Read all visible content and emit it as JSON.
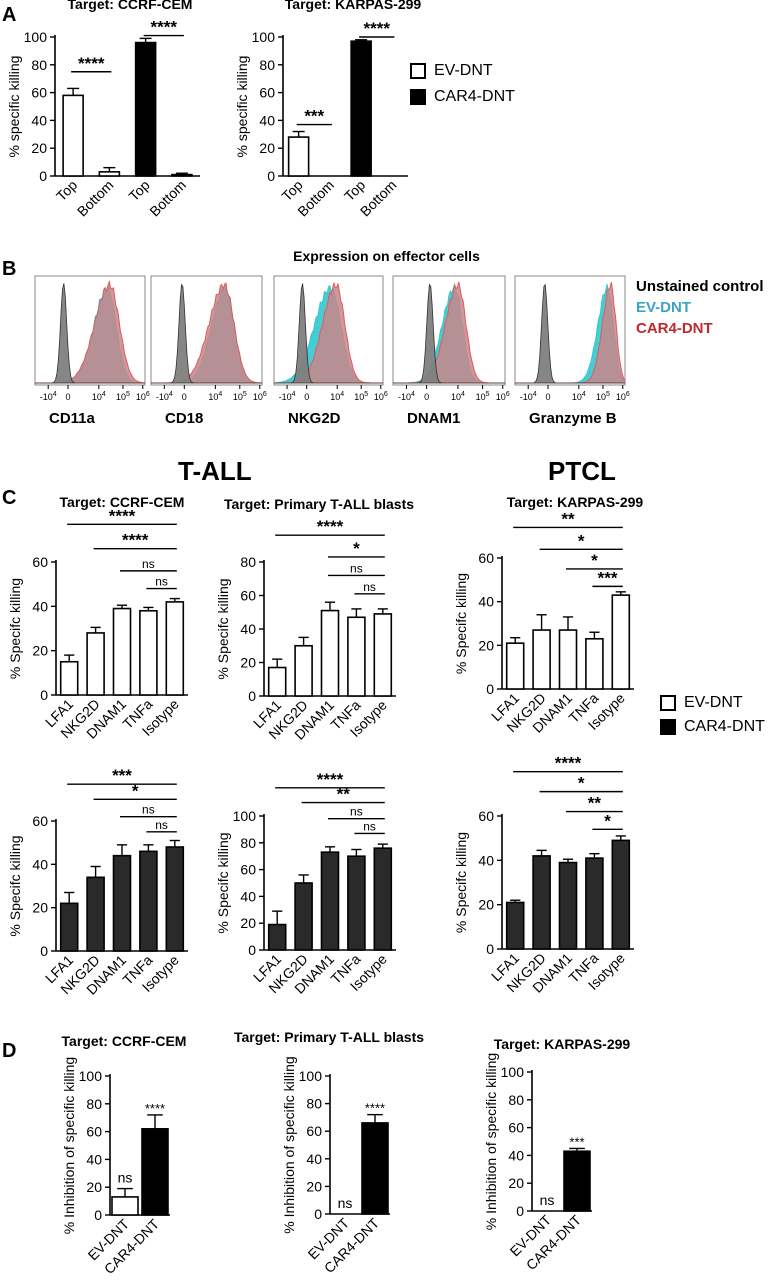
{
  "panel_labels": {
    "a": "A",
    "b": "B",
    "c": "C",
    "d": "D"
  },
  "colors": {
    "ev": "#ffffff",
    "car4": "#000000",
    "car4_dark": "#2a2a2a",
    "flow_unstained": "#7f7f7f",
    "flow_ev": "#32c8cf",
    "flow_car4": "#c9868a",
    "legend_ev_text": "#3aa3c8",
    "legend_car4_text": "#c0282d"
  },
  "legend": {
    "ev": "EV-DNT",
    "car4": "CAR4-DNT"
  },
  "group_titles": {
    "tall": "T-ALL",
    "ptcl": "PTCL"
  },
  "panel_b": {
    "title": "Expression on effector cells",
    "legend": [
      "Unstained control",
      "EV-DNT",
      "CAR4-DNT"
    ],
    "markers": [
      "CD11a",
      "CD18",
      "NKG2D",
      "DNAM1",
      "Granzyme B"
    ],
    "tick_labels": [
      "-10^4",
      "0",
      "10^4",
      "10^5",
      "10^6"
    ]
  },
  "chart_data": [
    {
      "id": "A1",
      "type": "bar",
      "title": "Target: CCRF-CEM",
      "ylabel": "% specific killing",
      "ylim": [
        0,
        100
      ],
      "yticks": [
        0,
        20,
        40,
        60,
        80,
        100
      ],
      "categories": [
        "Top",
        "Bottom",
        "Top",
        "Bottom"
      ],
      "series": [
        "EV-DNT",
        "EV-DNT",
        "CAR4-DNT",
        "CAR4-DNT"
      ],
      "values": [
        58,
        3,
        96,
        1
      ],
      "errors": [
        5,
        3,
        3,
        1
      ],
      "annotations": [
        {
          "from": 0,
          "to": 1,
          "y": 75,
          "text": "****"
        },
        {
          "from": 2,
          "to": 3,
          "y": 101,
          "text": "****"
        }
      ]
    },
    {
      "id": "A2",
      "type": "bar",
      "title": "Target: KARPAS-299",
      "ylabel": "% specific killing",
      "ylim": [
        0,
        100
      ],
      "yticks": [
        0,
        20,
        40,
        60,
        80,
        100
      ],
      "categories": [
        "Top",
        "Bottom",
        "Top",
        "Bottom"
      ],
      "series": [
        "EV-DNT",
        "EV-DNT",
        "CAR4-DNT",
        "CAR4-DNT"
      ],
      "values": [
        28,
        0,
        97,
        0
      ],
      "errors": [
        4,
        0,
        1,
        0
      ],
      "annotations": [
        {
          "from": 0,
          "to": 1,
          "y": 37,
          "text": "***"
        },
        {
          "from": 2,
          "to": 3,
          "y": 100,
          "text": "****"
        }
      ]
    },
    {
      "id": "C1",
      "type": "bar",
      "title": "Target: CCRF-CEM",
      "ylabel": "% Specifc killing",
      "ylim": [
        0,
        60
      ],
      "yticks": [
        0,
        20,
        40,
        60
      ],
      "categories": [
        "LFA1",
        "NKG2D",
        "DNAM1",
        "TNFa",
        "Isotype"
      ],
      "series": "EV-DNT",
      "values": [
        15,
        28,
        39,
        38,
        42
      ],
      "errors": [
        3,
        2.5,
        1.5,
        1.5,
        1.5
      ],
      "annotations": [
        {
          "from": 0,
          "to": 4,
          "y": 77,
          "text": "****"
        },
        {
          "from": 1,
          "to": 4,
          "y": 66,
          "text": "****"
        },
        {
          "from": 2,
          "to": 4,
          "y": 56,
          "text": "ns"
        },
        {
          "from": 3,
          "to": 4,
          "y": 48,
          "text": "ns"
        }
      ]
    },
    {
      "id": "C2",
      "type": "bar",
      "title": "Target: Primary T-ALL blasts",
      "ylabel": "% Specifc killing",
      "ylim": [
        0,
        80
      ],
      "yticks": [
        0,
        20,
        40,
        60,
        80
      ],
      "categories": [
        "LFA1",
        "NKG2D",
        "DNAM1",
        "TNFa",
        "Isotype"
      ],
      "series": "EV-DNT",
      "values": [
        17,
        30,
        51,
        47,
        49
      ],
      "errors": [
        5,
        5,
        5,
        5,
        3
      ],
      "annotations": [
        {
          "from": 0,
          "to": 4,
          "y": 96,
          "text": "****"
        },
        {
          "from": 2,
          "to": 4,
          "y": 83,
          "text": "*"
        },
        {
          "from": 2,
          "to": 4,
          "y": 72,
          "text": "ns"
        },
        {
          "from": 3,
          "to": 4,
          "y": 61,
          "text": "ns"
        }
      ]
    },
    {
      "id": "C3",
      "type": "bar",
      "title": "Target: KARPAS-299",
      "ylabel": "% Specifc killing",
      "ylim": [
        0,
        60
      ],
      "yticks": [
        0,
        20,
        40,
        60
      ],
      "categories": [
        "LFA1",
        "NKG2D",
        "DNAM1",
        "TNFa",
        "Isotype"
      ],
      "series": "EV-DNT",
      "values": [
        21,
        27,
        27,
        23,
        43
      ],
      "errors": [
        2.5,
        7,
        6,
        3,
        1.5
      ],
      "annotations": [
        {
          "from": 0,
          "to": 4,
          "y": 74,
          "text": "**"
        },
        {
          "from": 1,
          "to": 4,
          "y": 64,
          "text": "*"
        },
        {
          "from": 2,
          "to": 4,
          "y": 55,
          "text": "*"
        },
        {
          "from": 3,
          "to": 4,
          "y": 47,
          "text": "***"
        }
      ]
    },
    {
      "id": "C4",
      "type": "bar",
      "title": "",
      "ylabel": "% Specifc killing",
      "ylim": [
        0,
        60
      ],
      "yticks": [
        0,
        20,
        40,
        60
      ],
      "categories": [
        "LFA1",
        "NKG2D",
        "DNAM1",
        "TNFa",
        "Isotype"
      ],
      "series": "CAR4-DNT",
      "values": [
        22,
        34,
        44,
        46,
        48
      ],
      "errors": [
        5,
        5,
        5,
        3,
        3
      ],
      "annotations": [
        {
          "from": 0,
          "to": 4,
          "y": 77,
          "text": "***"
        },
        {
          "from": 1,
          "to": 4,
          "y": 70,
          "text": "*"
        },
        {
          "from": 2,
          "to": 4,
          "y": 62,
          "text": "ns"
        },
        {
          "from": 3,
          "to": 4,
          "y": 55,
          "text": "ns"
        }
      ]
    },
    {
      "id": "C5",
      "type": "bar",
      "title": "",
      "ylabel": "% Specifc killing",
      "ylim": [
        0,
        100
      ],
      "yticks": [
        0,
        20,
        40,
        60,
        80,
        100
      ],
      "categories": [
        "LFA1",
        "NKG2D",
        "DNAM1",
        "TNFa",
        "Isotype"
      ],
      "series": "CAR4-DNT",
      "values": [
        19,
        50,
        73,
        70,
        76
      ],
      "errors": [
        10,
        6,
        4,
        5,
        3
      ],
      "annotations": [
        {
          "from": 0,
          "to": 4,
          "y": 121,
          "text": "****"
        },
        {
          "from": 1,
          "to": 4,
          "y": 110,
          "text": "**"
        },
        {
          "from": 2,
          "to": 4,
          "y": 98,
          "text": "ns"
        },
        {
          "from": 3,
          "to": 4,
          "y": 87,
          "text": "ns"
        }
      ]
    },
    {
      "id": "C6",
      "type": "bar",
      "title": "",
      "ylabel": "% Specifc killing",
      "ylim": [
        0,
        60
      ],
      "yticks": [
        0,
        20,
        40,
        60
      ],
      "categories": [
        "LFA1",
        "NKG2D",
        "DNAM1",
        "TNFa",
        "Isotype"
      ],
      "series": "CAR4-DNT",
      "values": [
        21,
        42,
        39,
        41,
        49
      ],
      "errors": [
        1,
        2.5,
        1.5,
        2,
        2
      ],
      "annotations": [
        {
          "from": 0,
          "to": 4,
          "y": 80,
          "text": "****"
        },
        {
          "from": 1,
          "to": 4,
          "y": 71,
          "text": "*"
        },
        {
          "from": 2,
          "to": 4,
          "y": 62,
          "text": "**"
        },
        {
          "from": 3,
          "to": 4,
          "y": 54,
          "text": "*"
        }
      ]
    },
    {
      "id": "D1",
      "type": "bar",
      "title": "Target: CCRF-CEM",
      "ylabel": "% Inhibition of specific killing",
      "ylim": [
        0,
        100
      ],
      "yticks": [
        0,
        20,
        40,
        60,
        80,
        100
      ],
      "categories": [
        "EV-DNT",
        "CAR4-DNT"
      ],
      "series": [
        "EV-DNT",
        "CAR4-DNT"
      ],
      "values": [
        13,
        62
      ],
      "errors": [
        6,
        10
      ],
      "stars": [
        "ns",
        "****"
      ]
    },
    {
      "id": "D2",
      "type": "bar",
      "title": "Target: Primary T-ALL blasts",
      "ylabel": "% Inhibition of specific killing",
      "ylim": [
        0,
        100
      ],
      "yticks": [
        0,
        20,
        40,
        60,
        80,
        100
      ],
      "categories": [
        "EV-DNT",
        "CAR4-DNT"
      ],
      "series": [
        "EV-DNT",
        "CAR4-DNT"
      ],
      "values": [
        0,
        66
      ],
      "errors": [
        0,
        6
      ],
      "stars": [
        "ns",
        "****"
      ]
    },
    {
      "id": "D3",
      "type": "bar",
      "title": "Target: KARPAS-299",
      "ylabel": "% Inhibition of specific killing",
      "ylim": [
        0,
        100
      ],
      "yticks": [
        0,
        20,
        40,
        60,
        80,
        100
      ],
      "categories": [
        "EV-DNT",
        "CAR4-DNT"
      ],
      "series": [
        "EV-DNT",
        "CAR4-DNT"
      ],
      "values": [
        0,
        43
      ],
      "errors": [
        0,
        2
      ],
      "stars": [
        "ns",
        "***"
      ]
    }
  ]
}
